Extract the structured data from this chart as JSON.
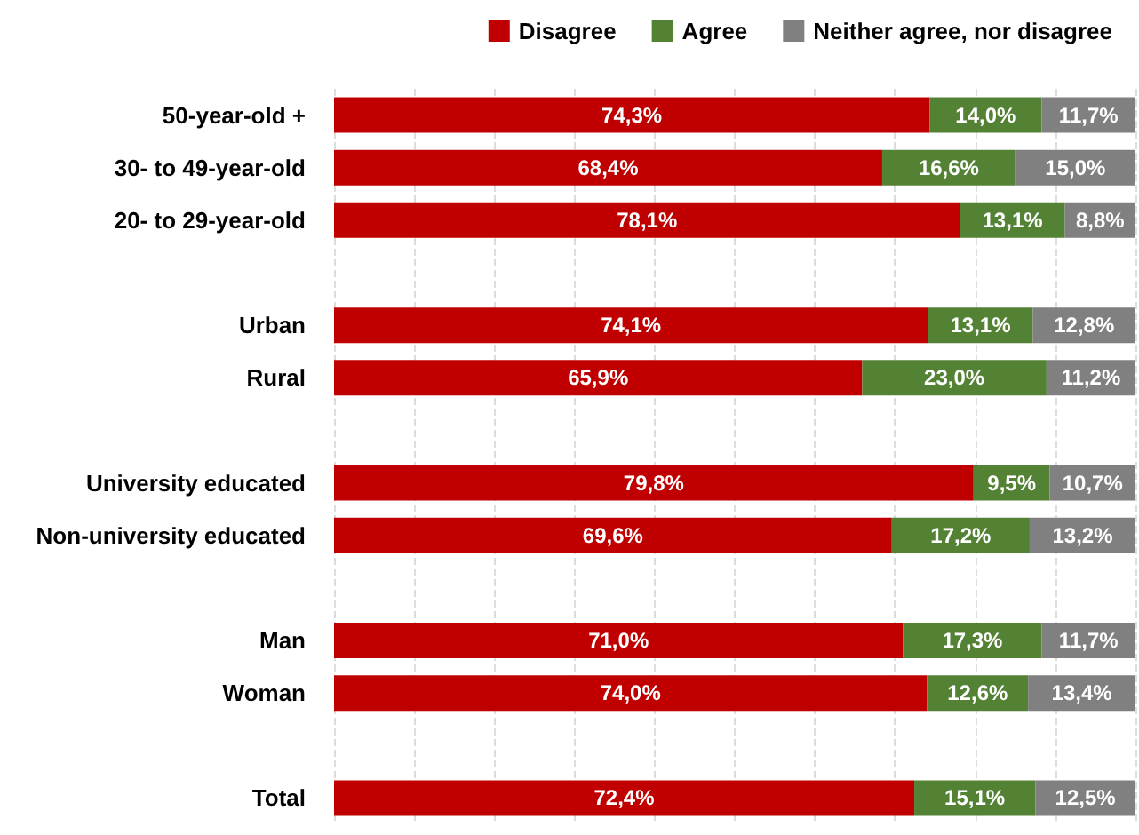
{
  "chart_data": {
    "type": "bar",
    "orientation": "horizontal",
    "stacked": true,
    "categories": [
      "50-year-old +",
      "30- to 49-year-old",
      "20- to 29-year-old",
      null,
      "Urban",
      "Rural",
      null,
      "University educated",
      "Non-university educated",
      null,
      "Man",
      "Woman",
      null,
      "Total"
    ],
    "series": [
      {
        "name": "Disagree",
        "color": "#c00000",
        "values": [
          74.3,
          68.4,
          78.1,
          null,
          74.1,
          65.9,
          null,
          79.8,
          69.6,
          null,
          71.0,
          74.0,
          null,
          72.4
        ],
        "value_labels": [
          "74,3%",
          "68,4%",
          "78,1%",
          null,
          "74,1%",
          "65,9%",
          null,
          "79,8%",
          "69,6%",
          null,
          "71,0%",
          "74,0%",
          null,
          "72,4%"
        ]
      },
      {
        "name": "Agree",
        "color": "#548235",
        "values": [
          14.0,
          16.6,
          13.1,
          null,
          13.1,
          23.0,
          null,
          9.5,
          17.2,
          null,
          17.3,
          12.6,
          null,
          15.1
        ],
        "value_labels": [
          "14,0%",
          "16,6%",
          "13,1%",
          null,
          "13,1%",
          "23,0%",
          null,
          "9,5%",
          "17,2%",
          null,
          "17,3%",
          "12,6%",
          null,
          "15,1%"
        ]
      },
      {
        "name": "Neither agree, nor disagree",
        "color": "#808080",
        "values": [
          11.7,
          15.0,
          8.8,
          null,
          12.8,
          11.2,
          null,
          10.7,
          13.2,
          null,
          11.7,
          13.4,
          null,
          12.5
        ],
        "value_labels": [
          "11,7%",
          "15,0%",
          "8,8%",
          null,
          "12,8%",
          "11,2%",
          null,
          "10,7%",
          "13,2%",
          null,
          "11,7%",
          "13,4%",
          null,
          "12,5%"
        ]
      }
    ],
    "xlim": [
      0,
      100
    ],
    "xticks": [
      {
        "value": 0,
        "label": null
      },
      {
        "value": 10,
        "label": null
      },
      {
        "value": 20,
        "label": null
      },
      {
        "value": 30,
        "label": null
      },
      {
        "value": 40,
        "label": null
      },
      {
        "value": 50,
        "label": null
      },
      {
        "value": 60,
        "label": null
      },
      {
        "value": 70,
        "label": null
      },
      {
        "value": 80,
        "label": null
      },
      {
        "value": 90,
        "label": null
      },
      {
        "value": 100,
        "label": null
      }
    ],
    "grid": "x",
    "legend": "top",
    "tick_labels": "y"
  }
}
